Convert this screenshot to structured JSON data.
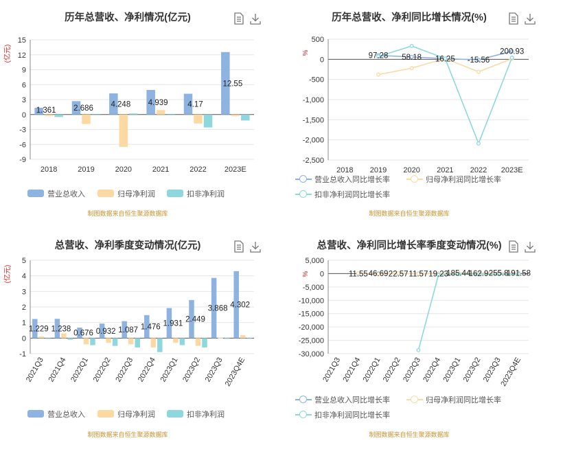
{
  "panels": [
    {
      "title": "历年总营收、净利情况(亿元)",
      "unit": "(亿元)",
      "source": "制图数据来自恒生聚源数据库",
      "legend": [
        "营业总收入",
        "归母净利润",
        "扣非净利润"
      ]
    },
    {
      "title": "历年总营收、净利同比增长情况(%)",
      "unit": "%",
      "source": "制图数据来自恒生聚源数据库",
      "legend": [
        "营业总收入同比增长率",
        "归母净利润同比增长率",
        "扣非净利润同比增长率"
      ]
    },
    {
      "title": "总营收、净利季度变动情况(亿元)",
      "unit": "(亿元)",
      "source": "制图数据来自恒生聚源数据库",
      "legend": [
        "营业总收入",
        "归母净利润",
        "扣非净利润"
      ]
    },
    {
      "title": "总营收、净利同比增长率季度变动情况(%)",
      "unit": "%",
      "source": "制图数据来自恒生聚源数据库",
      "legend": [
        "营业总收入同比增长率",
        "归母净利润同比增长率",
        "扣非净利润同比增长率"
      ]
    }
  ],
  "colors": {
    "revenue": "#8eb3e0",
    "parent_profit": "#fcd9a3",
    "deducted_profit": "#8ed8dd"
  },
  "icons": [
    "document-icon",
    "download-icon"
  ],
  "chart_data": [
    {
      "type": "bar",
      "categories": [
        "2018",
        "2019",
        "2020",
        "2021",
        "2022",
        "2023E"
      ],
      "ylim": [
        -9,
        15
      ],
      "yticks": [
        -9,
        -6,
        -3,
        0,
        3,
        6,
        9,
        12,
        15
      ],
      "series": [
        {
          "name": "营业总收入",
          "values": [
            1.361,
            2.686,
            4.248,
            4.939,
            4.17,
            12.55
          ],
          "labels": [
            "1.361",
            "2.686",
            "4.248",
            "4.939",
            "4.17",
            "12.55"
          ]
        },
        {
          "name": "归母净利润",
          "values": [
            -0.3,
            -1.9,
            -6.5,
            0.9,
            -1.8,
            -0.3
          ]
        },
        {
          "name": "扣非净利润",
          "values": [
            -0.5,
            -0.1,
            0.2,
            -0.1,
            -2.6,
            -1.2
          ]
        }
      ]
    },
    {
      "type": "line",
      "categories": [
        "2018",
        "2019",
        "2020",
        "2021",
        "2022",
        "2023E"
      ],
      "ylim": [
        -2500,
        500
      ],
      "yticks": [
        -2500,
        -2000,
        -1500,
        -1000,
        -500,
        0,
        500
      ],
      "series": [
        {
          "name": "营业总收入同比增长率",
          "values": [
            null,
            97.28,
            58.18,
            16.25,
            -15.56,
            200.93
          ],
          "labels": [
            "",
            "97.28",
            "58.18",
            "16.25",
            "-15.56",
            "200.93"
          ]
        },
        {
          "name": "归母净利润同比增长率",
          "values": [
            null,
            -380,
            -220,
            20,
            -310,
            15
          ]
        },
        {
          "name": "扣非净利润同比增长率",
          "values": [
            null,
            70,
            330,
            20,
            -2090,
            40
          ]
        }
      ]
    },
    {
      "type": "bar",
      "categories": [
        "2021Q3",
        "2021Q4",
        "2022Q1",
        "2022Q2",
        "2022Q3",
        "2022Q4",
        "2023Q1",
        "2023Q2",
        "2023Q3",
        "2023Q4E"
      ],
      "ylim": [
        -1,
        5
      ],
      "yticks": [
        -1,
        0,
        1,
        2,
        3,
        4,
        5
      ],
      "series": [
        {
          "name": "营业总收入",
          "values": [
            1.229,
            1.238,
            0.676,
            0.932,
            1.087,
            1.476,
            1.931,
            2.449,
            3.868,
            4.302
          ],
          "labels": [
            "1.229",
            "1.238",
            "0.676",
            "0.932",
            "1.087",
            "1.476",
            "1.931",
            "2.449",
            "3.868",
            "4.302"
          ]
        },
        {
          "name": "归母净利润",
          "values": [
            0.1,
            0.3,
            -0.4,
            -0.3,
            -0.4,
            -0.6,
            -0.3,
            -0.5,
            0.02,
            0.2
          ]
        },
        {
          "name": "扣非净利润",
          "values": [
            -0.05,
            -0.1,
            -0.45,
            -0.5,
            -0.6,
            -0.9,
            -0.45,
            -0.6,
            -0.02,
            0.0
          ]
        }
      ]
    },
    {
      "type": "line",
      "categories": [
        "2021Q3",
        "2021Q4",
        "2022Q1",
        "2022Q2",
        "2022Q3",
        "2022Q4",
        "2023Q1",
        "2023Q2",
        "2023Q3",
        "2023Q4E"
      ],
      "ylim": [
        -30000,
        5000
      ],
      "yticks": [
        -30000,
        -25000,
        -20000,
        -15000,
        -10000,
        -5000,
        0,
        5000
      ],
      "series": [
        {
          "name": "营业总收入同比增长率",
          "values": [
            null,
            11.55,
            46.69,
            22.57,
            11.57,
            19.23,
            185.44,
            162.9,
            255.8,
            191.58
          ],
          "labels": [
            "",
            "11.55",
            "46.69",
            "22.57",
            "11.57",
            "19.23",
            "185.44",
            "162.9",
            "255.8",
            "191.58"
          ]
        },
        {
          "name": "归母净利润同比增长率",
          "values": [
            null,
            100,
            -200,
            150,
            -100,
            -50,
            200,
            100,
            150,
            100
          ]
        },
        {
          "name": "扣非净利润同比增长率",
          "values": [
            null,
            null,
            null,
            null,
            -28700,
            -500,
            -200,
            -300,
            -200,
            -150
          ]
        }
      ]
    }
  ]
}
